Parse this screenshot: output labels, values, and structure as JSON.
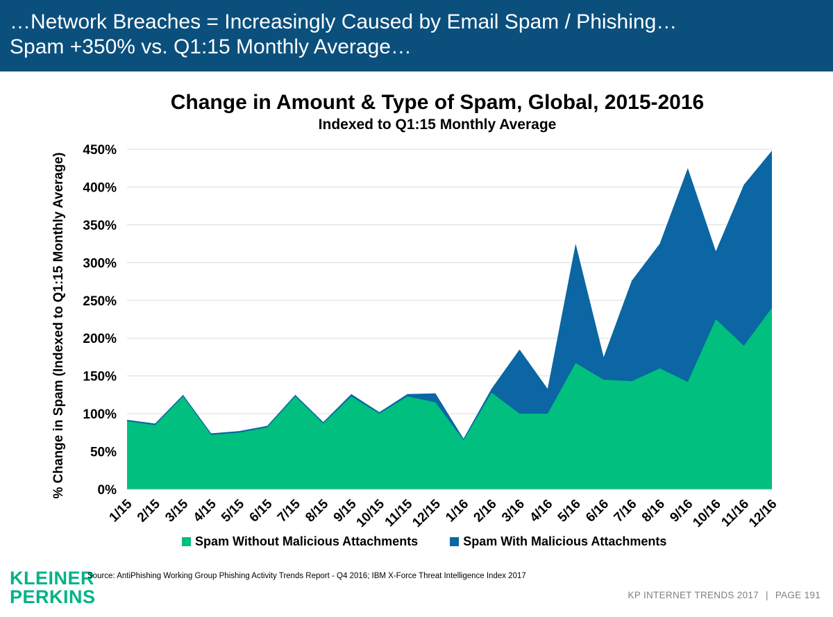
{
  "header": {
    "title_line1": "…Network Breaches = Increasingly Caused by Email Spam / Phishing…",
    "title_line2": "Spam +350% vs. Q1:15 Monthly Average…"
  },
  "source": "Source: AntiPhishing Working Group Phishing Activity Trends Report - Q4 2016; IBM X-Force Threat Intelligence Index 2017",
  "logo": {
    "line1": "KLEINER",
    "line2": "PERKINS",
    "color": "#00b386"
  },
  "footer": {
    "left": "KP INTERNET TRENDS 2017",
    "separator": "|",
    "right": "PAGE 191"
  },
  "colors": {
    "header_bg": "#0b4f7d",
    "green": "#00bf7f",
    "blue": "#0b66a3"
  },
  "chart_data": {
    "type": "area",
    "stacked": true,
    "title": "Change in Amount & Type of Spam, Global, 2015-2016",
    "subtitle": "Indexed to Q1:15 Monthly Average",
    "ylabel": "% Change in Spam (Indexed to Q1:15 Monthly Average)",
    "xlabel": "",
    "ylim": [
      0,
      450
    ],
    "yticks": [
      "0%",
      "50%",
      "100%",
      "150%",
      "200%",
      "250%",
      "300%",
      "350%",
      "400%",
      "450%"
    ],
    "grid": true,
    "legend_position": "bottom",
    "categories": [
      "1/15",
      "2/15",
      "3/15",
      "4/15",
      "5/15",
      "6/15",
      "7/15",
      "8/15",
      "9/15",
      "10/15",
      "11/15",
      "12/15",
      "1/16",
      "2/16",
      "3/16",
      "4/16",
      "5/16",
      "6/16",
      "7/16",
      "8/16",
      "9/16",
      "10/16",
      "11/16",
      "12/16"
    ],
    "series": [
      {
        "name": "Spam Without Malicious Attachments",
        "color": "#00bf7f",
        "values": [
          90,
          85,
          123,
          72,
          75,
          82,
          123,
          87,
          123,
          100,
          123,
          115,
          65,
          128,
          100,
          100,
          167,
          145,
          143,
          160,
          142,
          225,
          190,
          240
        ]
      },
      {
        "name": "Spam With Malicious Attachments",
        "color": "#0b66a3",
        "values": [
          2,
          2,
          2,
          2,
          2,
          2,
          2,
          2,
          3,
          2,
          3,
          12,
          2,
          5,
          85,
          33,
          158,
          30,
          133,
          165,
          283,
          90,
          213,
          208
        ]
      }
    ]
  }
}
